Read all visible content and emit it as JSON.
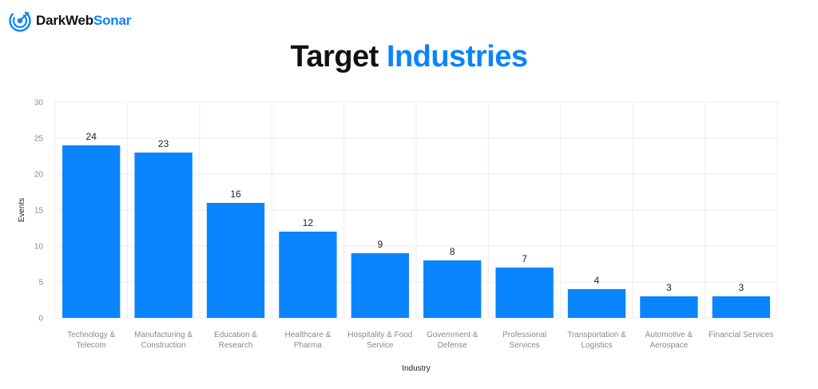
{
  "brand": {
    "name_part1": "DarkWeb",
    "name_part2": "Sonar",
    "logo_icon": "sonar-radar-icon",
    "accent_color": "#0a84ff"
  },
  "header": {
    "title_part1": "Target",
    "title_part2": "Industries"
  },
  "chart_data": {
    "type": "bar",
    "categories": [
      [
        "Technology &",
        "Telecom"
      ],
      [
        "Manufacturing &",
        "Construction"
      ],
      [
        "Education &",
        "Research"
      ],
      [
        "Healthcare &",
        "Pharma"
      ],
      [
        "Hospitality & Food",
        "Service"
      ],
      [
        "Government &",
        "Defense"
      ],
      [
        "Professional",
        "Services"
      ],
      [
        "Transportation &",
        "Logistics"
      ],
      [
        "Automotive &",
        "Aerospace"
      ],
      [
        "Financial Services"
      ]
    ],
    "values": [
      24,
      23,
      16,
      12,
      9,
      8,
      7,
      4,
      3,
      3
    ],
    "xlabel": "Industry",
    "ylabel": "Events",
    "ylim": [
      0,
      30
    ],
    "yticks": [
      0,
      5,
      10,
      15,
      20,
      25,
      30
    ],
    "grid": true,
    "data_labels": true,
    "bar_color": "#0a84ff",
    "grid_color": "#ececec"
  }
}
